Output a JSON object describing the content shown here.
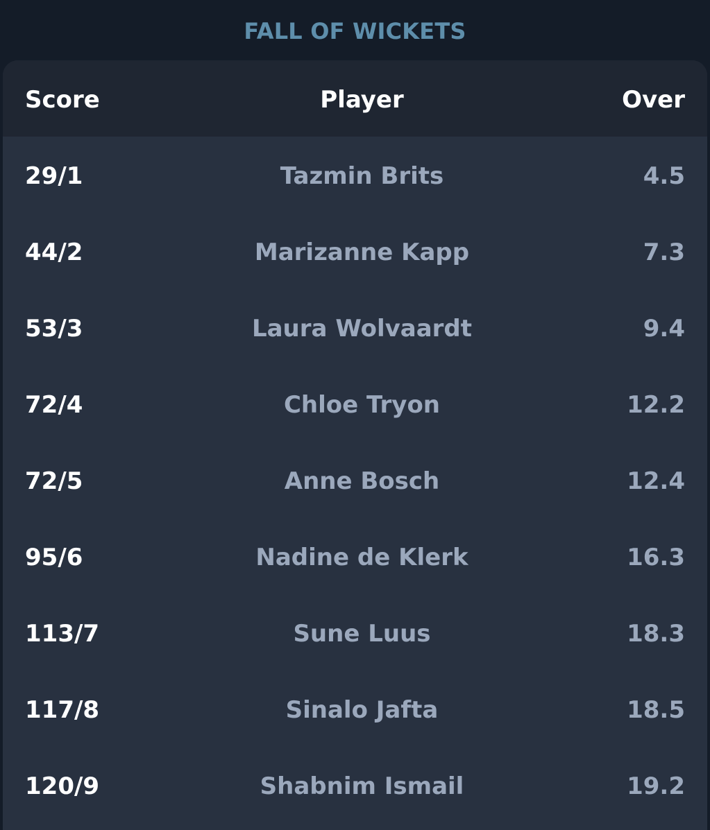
{
  "title": "FALL OF WICKETS",
  "columns": {
    "score": "Score",
    "player": "Player",
    "over": "Over"
  },
  "rows": [
    {
      "score": "29/1",
      "player": "Tazmin Brits",
      "over": "4.5"
    },
    {
      "score": "44/2",
      "player": "Marizanne Kapp",
      "over": "7.3"
    },
    {
      "score": "53/3",
      "player": "Laura Wolvaardt",
      "over": "9.4"
    },
    {
      "score": "72/4",
      "player": "Chloe Tryon",
      "over": "12.2"
    },
    {
      "score": "72/5",
      "player": "Anne Bosch",
      "over": "12.4"
    },
    {
      "score": "95/6",
      "player": "Nadine de Klerk",
      "over": "16.3"
    },
    {
      "score": "113/7",
      "player": "Sune Luus",
      "over": "18.3"
    },
    {
      "score": "117/8",
      "player": "Sinalo Jafta",
      "over": "18.5"
    },
    {
      "score": "120/9",
      "player": "Shabnim Ismail",
      "over": "19.2"
    }
  ]
}
